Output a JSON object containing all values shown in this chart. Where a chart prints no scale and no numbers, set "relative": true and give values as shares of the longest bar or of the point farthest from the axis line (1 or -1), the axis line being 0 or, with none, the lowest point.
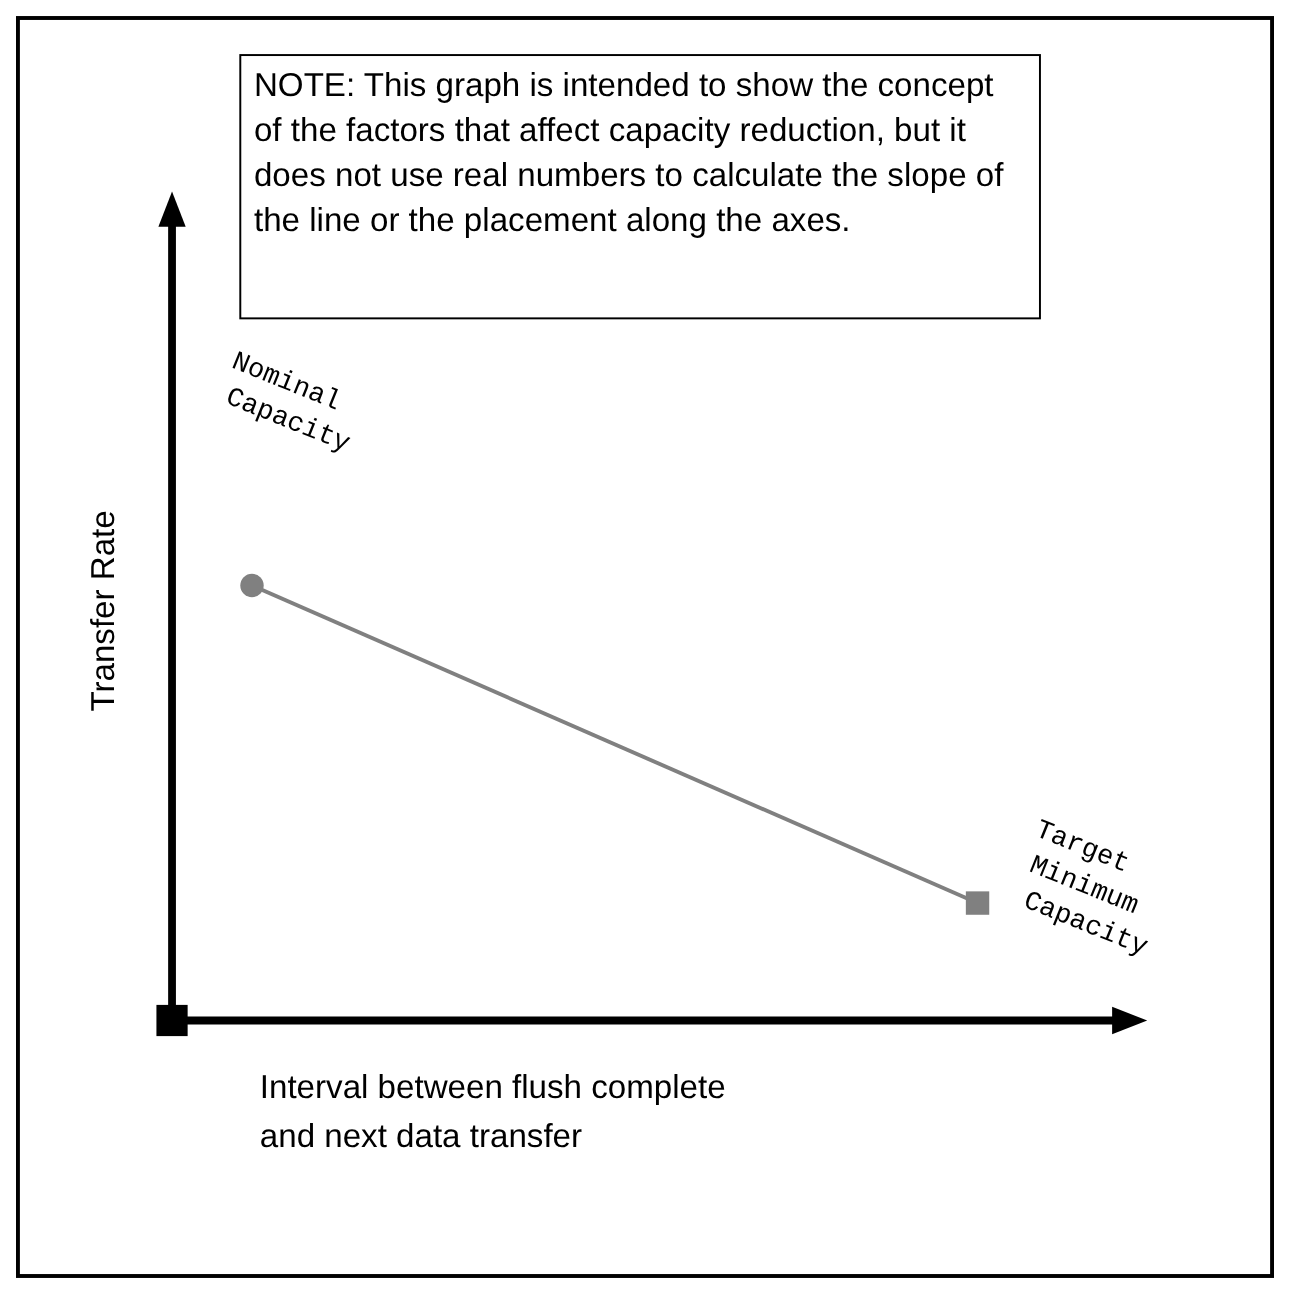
{
  "chart_data": {
    "type": "line",
    "relative": true,
    "xlabel": "Interval between flush complete and next data transfer",
    "ylabel": "Transfer Rate",
    "categories": [
      null,
      null
    ],
    "series": [
      {
        "color": "#808080",
        "values": [
          1,
          0.27
        ],
        "marker": [
          "circle",
          "square"
        ]
      }
    ],
    "annotations": [
      "NOTE: This graph is intended to show the concept of the factors that affect capacity reduction, but it does not use real numbers to calculate the slope of the line or the placement along the axes.",
      "Nominal Capacity",
      "Target Minimum Capacity"
    ]
  }
}
